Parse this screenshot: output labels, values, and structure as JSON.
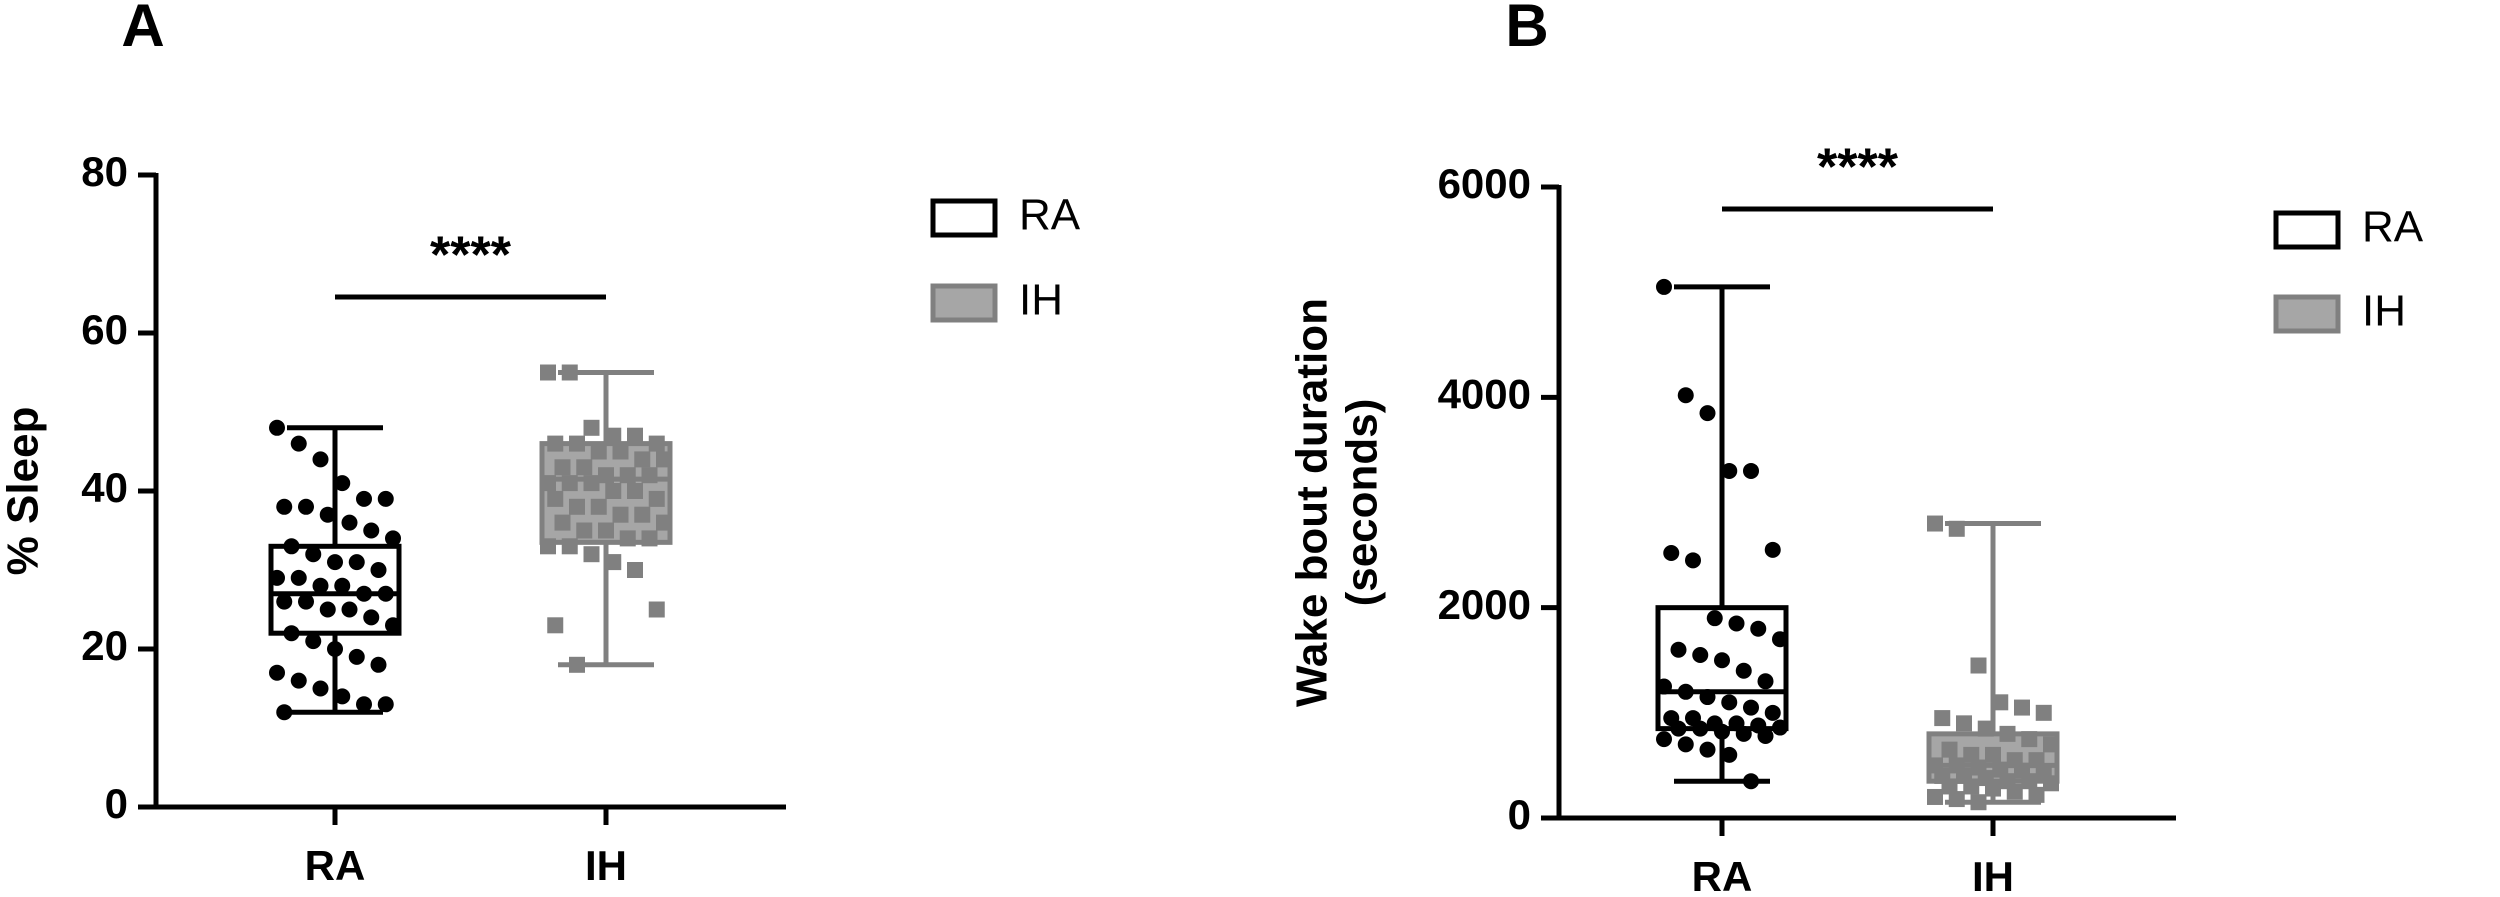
{
  "chart_data": [
    {
      "type": "box",
      "panel": "A",
      "ylabel": [
        "% Sleep"
      ],
      "categories": [
        "RA",
        "IH"
      ],
      "ylim": [
        0,
        80
      ],
      "yticks": [
        0,
        20,
        40,
        60,
        80
      ],
      "significance": "****",
      "legend": "right",
      "series": [
        {
          "name": "RA",
          "color": "#000000",
          "fill": "#ffffff",
          "marker": "circle",
          "min": 12,
          "q1": 22,
          "median": 27,
          "q3": 33,
          "max": 48,
          "points": [
            48,
            46,
            44,
            41,
            39,
            39,
            38,
            38,
            37,
            36,
            35,
            34,
            33,
            32,
            31,
            31,
            30,
            29,
            29,
            28,
            28,
            27,
            27,
            26,
            26,
            25,
            25,
            24,
            23,
            22,
            21,
            20,
            19,
            18,
            17,
            16,
            15,
            14,
            13,
            13,
            12
          ]
        },
        {
          "name": "IH",
          "color": "#808080",
          "fill": "#a6a6a6",
          "marker": "square",
          "min": 18,
          "q1": 33.5,
          "median": 41.5,
          "q3": 46,
          "max": 55,
          "points": [
            55,
            55,
            48,
            47,
            47,
            46,
            46,
            46,
            45,
            45,
            44,
            44,
            43,
            43,
            42,
            42,
            42,
            41,
            41,
            41,
            40,
            40,
            39,
            39,
            38,
            38,
            37,
            37,
            36,
            36,
            35,
            35,
            34,
            34,
            33,
            33,
            32,
            31,
            30,
            25,
            23,
            18
          ]
        }
      ]
    },
    {
      "type": "box",
      "panel": "B",
      "ylabel": [
        "Wake bout duration",
        "(seconds)"
      ],
      "categories": [
        "RA",
        "IH"
      ],
      "ylim": [
        0,
        6000
      ],
      "yticks": [
        0,
        2000,
        4000,
        6000
      ],
      "significance": "****",
      "legend": "right",
      "series": [
        {
          "name": "RA",
          "color": "#000000",
          "fill": "#ffffff",
          "marker": "circle",
          "min": 350,
          "q1": 850,
          "median": 1200,
          "q3": 2000,
          "max": 5050,
          "points": [
            5050,
            4020,
            3850,
            3300,
            3300,
            2550,
            2520,
            2450,
            1900,
            1850,
            1800,
            1700,
            1600,
            1550,
            1500,
            1400,
            1300,
            1250,
            1200,
            1150,
            1100,
            1050,
            1000,
            950,
            950,
            900,
            900,
            880,
            860,
            850,
            850,
            820,
            800,
            780,
            750,
            700,
            650,
            600,
            350
          ]
        },
        {
          "name": "IH",
          "color": "#808080",
          "fill": "#a6a6a6",
          "marker": "square",
          "min": 150,
          "q1": 350,
          "median": 500,
          "q3": 800,
          "max": 2800,
          "points": [
            2800,
            2750,
            1450,
            1100,
            1050,
            1000,
            950,
            900,
            850,
            800,
            750,
            700,
            650,
            600,
            600,
            550,
            550,
            500,
            500,
            480,
            460,
            450,
            420,
            400,
            400,
            380,
            350,
            350,
            330,
            300,
            300,
            280,
            250,
            220,
            200,
            180,
            150
          ]
        }
      ]
    }
  ]
}
